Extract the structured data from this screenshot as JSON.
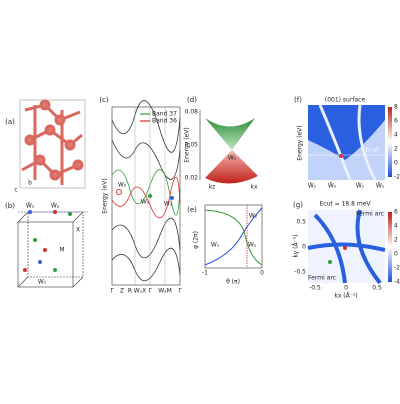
{
  "panels": {
    "a": {
      "label": "(a)",
      "axes": [
        "b",
        "c"
      ]
    },
    "b": {
      "label": "(b)",
      "points": [
        "W̄₁",
        "W̄₂",
        "W₁",
        "M",
        "X"
      ]
    },
    "c": {
      "label": "(c)",
      "y_label": "Energy (eV)",
      "legend": [
        "Band 37",
        "Band 36"
      ],
      "x_labels": [
        "Γ",
        "Z",
        "R",
        "W₁X",
        "Γ",
        "W₃M",
        "Γ"
      ],
      "points": [
        "W₂",
        "W₁",
        "W₃"
      ]
    },
    "d": {
      "label": "(d)",
      "y_label": "Energy (eV)",
      "y_ticks": [
        "0.08",
        "0.05",
        "0.02"
      ],
      "point": "W₂",
      "x_labels": [
        "kz",
        "kx"
      ]
    },
    "e": {
      "label": "(e)",
      "y_label": "φ (2π)",
      "x_label": "θ (π)",
      "x_ticks": [
        "-1",
        "0"
      ],
      "points": [
        "W₁",
        "W₂",
        "W₁"
      ]
    },
    "f": {
      "label": "(f)",
      "title": "(001) surface",
      "y_label": "Energy (eV)",
      "x_labels": [
        "W̄₁",
        "W̄₂",
        "W̄₁",
        "W̄₁"
      ],
      "annotation": "Ecut",
      "colorbar_ticks": [
        "8",
        "6",
        "4",
        "2",
        "0",
        "-2"
      ]
    },
    "g": {
      "label": "(g)",
      "title": "Ecut = 18.8 meV",
      "annotations": [
        "Fermi arc",
        "Fermi arc"
      ],
      "y_label": "ky (Å⁻¹)",
      "x_label": "kx (Å⁻¹)",
      "x_ticks": [
        "-0.5",
        "0",
        "0.5"
      ],
      "y_ticks": [
        "0.5",
        "0",
        "-0.5"
      ],
      "colorbar_ticks": [
        "6",
        "4",
        "2",
        "0",
        "-2",
        "-4"
      ]
    }
  }
}
